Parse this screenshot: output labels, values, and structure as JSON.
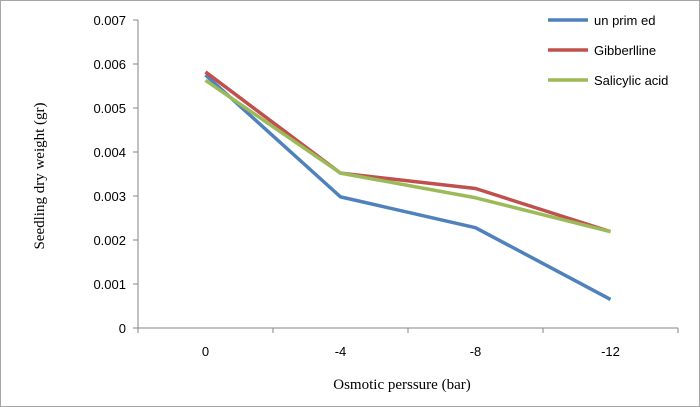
{
  "chart_data": {
    "type": "line",
    "categories": [
      "0",
      "-4",
      "-8",
      "-12"
    ],
    "series": [
      {
        "name": "un prim ed",
        "values": [
          0.00575,
          0.00298,
          0.00228,
          0.00065
        ],
        "color": "#4f81bd"
      },
      {
        "name": "Gibberlline",
        "values": [
          0.00582,
          0.00352,
          0.00317,
          0.00219
        ],
        "color": "#c0504d"
      },
      {
        "name": "Salicylic acid",
        "values": [
          0.00563,
          0.00352,
          0.00296,
          0.00219
        ],
        "color": "#9bbb59"
      }
    ],
    "xlabel": "Osmotic perssure (bar)",
    "ylabel": "Seedling dry weight (gr)",
    "ylim": [
      0,
      0.007
    ],
    "yticks": [
      "0",
      "0.001",
      "0.002",
      "0.003",
      "0.004",
      "0.005",
      "0.006",
      "0.007"
    ],
    "grid": false,
    "legend_position": "top-right"
  }
}
